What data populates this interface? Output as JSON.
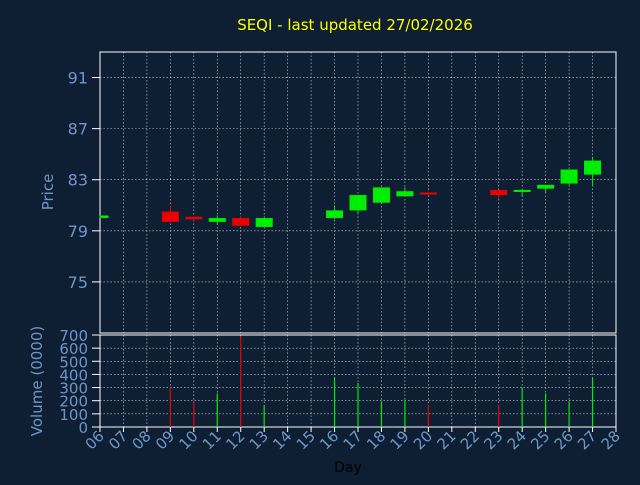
{
  "colors": {
    "background": "#0e1f33",
    "title": "#ffff00",
    "axis_text": "#6f96c8",
    "grid": "#ffffff",
    "plot_border": "#ffffff",
    "up": "#00ee00",
    "down": "#ee0000",
    "volume_neutral": "#a0a0a0",
    "xlabel": "#000000"
  },
  "chart_data": [
    {
      "type": "candlestick",
      "title": "SEQI - last updated 27/02/2026",
      "ylabel": "Price",
      "ylim": [
        71,
        93
      ],
      "yticks": [
        75,
        79,
        83,
        87,
        91
      ],
      "grid": true,
      "x_categories": [
        "06",
        "07",
        "08",
        "09",
        "10",
        "11",
        "12",
        "13",
        "14",
        "15",
        "16",
        "17",
        "18",
        "19",
        "20",
        "21",
        "22",
        "23",
        "24",
        "25",
        "26",
        "27",
        "28"
      ],
      "candles": [
        {
          "day": "06",
          "open": 80.0,
          "close": 80.2,
          "high": 80.2,
          "low": 80.0
        },
        {
          "day": "09",
          "open": 80.5,
          "close": 79.7,
          "high": 81.0,
          "low": 79.7
        },
        {
          "day": "10",
          "open": 80.1,
          "close": 79.9,
          "high": 80.1,
          "low": 79.8
        },
        {
          "day": "11",
          "open": 79.7,
          "close": 80.0,
          "high": 80.2,
          "low": 79.5
        },
        {
          "day": "12",
          "open": 80.0,
          "close": 79.4,
          "high": 80.1,
          "low": 79.4
        },
        {
          "day": "13",
          "open": 79.3,
          "close": 80.0,
          "high": 80.0,
          "low": 79.3
        },
        {
          "day": "16",
          "open": 80.0,
          "close": 80.6,
          "high": 81.0,
          "low": 79.9
        },
        {
          "day": "17",
          "open": 80.6,
          "close": 81.8,
          "high": 81.8,
          "low": 80.3
        },
        {
          "day": "18",
          "open": 81.2,
          "close": 82.4,
          "high": 82.4,
          "low": 81.2
        },
        {
          "day": "19",
          "open": 81.7,
          "close": 82.1,
          "high": 82.4,
          "low": 81.7
        },
        {
          "day": "20",
          "open": 82.0,
          "close": 81.9,
          "high": 82.1,
          "low": 81.8
        },
        {
          "day": "23",
          "open": 82.2,
          "close": 81.8,
          "high": 82.2,
          "low": 81.5
        },
        {
          "day": "24",
          "open": 82.1,
          "close": 82.2,
          "high": 82.3,
          "low": 81.7
        },
        {
          "day": "25",
          "open": 82.3,
          "close": 82.6,
          "high": 82.6,
          "low": 82.0
        },
        {
          "day": "26",
          "open": 82.7,
          "close": 83.8,
          "high": 83.8,
          "low": 82.6
        },
        {
          "day": "27",
          "open": 83.4,
          "close": 84.5,
          "high": 84.8,
          "low": 82.5
        }
      ]
    },
    {
      "type": "bar",
      "ylabel": "Volume (0000)",
      "xlabel": "Day",
      "ylim": [
        0,
        700
      ],
      "yticks": [
        0,
        100,
        200,
        300,
        400,
        500,
        600,
        700
      ],
      "grid": true,
      "x_categories": [
        "06",
        "07",
        "08",
        "09",
        "10",
        "11",
        "12",
        "13",
        "14",
        "15",
        "16",
        "17",
        "18",
        "19",
        "20",
        "21",
        "22",
        "23",
        "24",
        "25",
        "26",
        "27",
        "28"
      ],
      "bars": [
        {
          "day": "09",
          "value": 300,
          "direction": "down"
        },
        {
          "day": "10",
          "value": 185,
          "direction": "down"
        },
        {
          "day": "11",
          "value": 255,
          "direction": "up"
        },
        {
          "day": "12",
          "value": 690,
          "direction": "down"
        },
        {
          "day": "13",
          "value": 165,
          "direction": "up"
        },
        {
          "day": "16",
          "value": 380,
          "direction": "up"
        },
        {
          "day": "17",
          "value": 335,
          "direction": "up"
        },
        {
          "day": "18",
          "value": 195,
          "direction": "up"
        },
        {
          "day": "19",
          "value": 205,
          "direction": "up"
        },
        {
          "day": "20",
          "value": 165,
          "direction": "down"
        },
        {
          "day": "23",
          "value": 165,
          "direction": "down"
        },
        {
          "day": "24",
          "value": 300,
          "direction": "up"
        },
        {
          "day": "25",
          "value": 255,
          "direction": "up"
        },
        {
          "day": "26",
          "value": 195,
          "direction": "up"
        },
        {
          "day": "27",
          "value": 370,
          "direction": "up"
        }
      ]
    }
  ]
}
